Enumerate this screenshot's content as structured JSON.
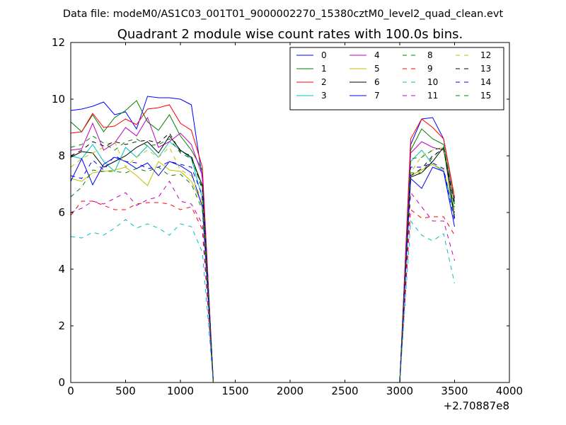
{
  "figure": {
    "suptitle": "Data file: modeM0/AS1C03_001T01_9000002270_15380cztM0_level2_quad_clean.evt"
  },
  "chart_data": {
    "type": "line",
    "title": "Quadrant 2 module wise count rates with 100.0s bins.",
    "xlabel": "",
    "ylabel": "",
    "x_offset_label": "+2.70887e8",
    "xlim": [
      0,
      4000
    ],
    "ylim": [
      0,
      12
    ],
    "xticks": [
      0,
      500,
      1000,
      1500,
      2000,
      2500,
      3000,
      3500,
      4000
    ],
    "yticks": [
      0,
      2,
      4,
      6,
      8,
      10,
      12
    ],
    "grid": false,
    "legend": {
      "placement": "top-right",
      "columns": 4
    },
    "x": [
      0,
      100,
      200,
      300,
      400,
      500,
      600,
      700,
      800,
      900,
      1000,
      1100,
      1200,
      1300,
      3000,
      3100,
      3200,
      3300,
      3400,
      3500
    ],
    "series": [
      {
        "name": "0",
        "color": "#0000ff",
        "dash": "solid",
        "values": [
          9.6,
          9.65,
          9.75,
          9.9,
          9.45,
          9.55,
          8.95,
          10.1,
          10.05,
          10.05,
          10.0,
          9.8,
          7.2,
          0,
          0,
          8.4,
          9.3,
          9.35,
          8.6,
          6.5
        ]
      },
      {
        "name": "1",
        "color": "#008000",
        "dash": "solid",
        "values": [
          9.2,
          8.85,
          9.45,
          8.85,
          9.35,
          9.6,
          9.95,
          9.2,
          8.9,
          9.45,
          8.7,
          8.2,
          7.5,
          0,
          0,
          8.2,
          8.95,
          8.6,
          8.4,
          6.3
        ]
      },
      {
        "name": "2",
        "color": "#ff0000",
        "dash": "solid",
        "values": [
          8.8,
          8.85,
          9.5,
          9.0,
          9.05,
          9.3,
          9.1,
          9.65,
          9.7,
          9.8,
          9.15,
          8.9,
          7.6,
          0,
          0,
          8.6,
          9.3,
          9.0,
          8.6,
          6.55
        ]
      },
      {
        "name": "3",
        "color": "#00bfbf",
        "dash": "solid",
        "values": [
          8.0,
          7.9,
          8.4,
          7.8,
          7.45,
          8.3,
          7.95,
          8.35,
          7.95,
          8.5,
          8.2,
          7.9,
          6.5,
          0,
          0,
          7.8,
          8.2,
          7.7,
          7.45,
          5.9
        ]
      },
      {
        "name": "4",
        "color": "#bf00bf",
        "dash": "solid",
        "values": [
          8.2,
          8.25,
          9.15,
          8.2,
          8.45,
          9.0,
          8.7,
          9.35,
          8.3,
          8.5,
          8.8,
          8.4,
          7.3,
          0,
          0,
          8.1,
          8.5,
          8.3,
          8.2,
          6.4
        ]
      },
      {
        "name": "5",
        "color": "#bfbf00",
        "dash": "solid",
        "values": [
          7.2,
          7.1,
          7.4,
          7.45,
          7.5,
          7.6,
          7.3,
          6.95,
          7.8,
          7.5,
          7.45,
          7.1,
          6.3,
          0,
          0,
          7.3,
          7.5,
          7.7,
          7.5,
          6.1
        ]
      },
      {
        "name": "6",
        "color": "#000000",
        "dash": "solid",
        "values": [
          7.95,
          8.15,
          8.1,
          7.6,
          7.8,
          8.0,
          8.3,
          8.5,
          8.1,
          8.7,
          8.2,
          7.95,
          6.95,
          0,
          0,
          7.25,
          7.4,
          7.8,
          8.3,
          5.8
        ]
      },
      {
        "name": "7",
        "color": "#0000ff",
        "dash": "solid",
        "values": [
          7.1,
          7.9,
          6.98,
          7.7,
          7.95,
          7.8,
          7.55,
          7.75,
          7.3,
          7.8,
          7.65,
          7.4,
          6.2,
          0,
          0,
          7.2,
          6.85,
          7.6,
          7.45,
          5.5
        ]
      },
      {
        "name": "8",
        "color": "#008000",
        "dash": "dashed",
        "values": [
          6.55,
          6.9,
          7.5,
          7.45,
          7.45,
          7.4,
          7.55,
          7.45,
          7.6,
          7.3,
          7.35,
          7.0,
          6.1,
          0,
          0,
          7.4,
          7.4,
          7.95,
          8.3,
          6.0
        ]
      },
      {
        "name": "9",
        "color": "#ff0000",
        "dash": "dashed",
        "values": [
          5.9,
          6.4,
          6.4,
          6.25,
          6.1,
          6.1,
          6.3,
          6.35,
          6.35,
          6.3,
          6.1,
          6.2,
          5.4,
          0,
          0,
          6.1,
          5.8,
          5.85,
          5.85,
          5.2
        ]
      },
      {
        "name": "10",
        "color": "#00bfbf",
        "dash": "dashed",
        "values": [
          5.15,
          5.1,
          5.3,
          5.2,
          5.45,
          5.75,
          5.45,
          5.6,
          5.45,
          5.2,
          5.6,
          5.5,
          4.6,
          0,
          0,
          5.7,
          5.2,
          5.0,
          5.25,
          3.5
        ]
      },
      {
        "name": "11",
        "color": "#bf00bf",
        "dash": "dashed",
        "values": [
          6.0,
          6.15,
          6.4,
          6.3,
          6.5,
          6.7,
          6.25,
          6.45,
          6.55,
          7.1,
          6.4,
          6.3,
          5.6,
          0,
          0,
          6.7,
          6.2,
          5.7,
          5.7,
          4.3
        ]
      },
      {
        "name": "12",
        "color": "#bfbf00",
        "dash": "dashed",
        "values": [
          7.6,
          7.9,
          8.1,
          8.3,
          8.5,
          7.6,
          7.95,
          8.2,
          7.95,
          8.3,
          7.5,
          7.3,
          6.4,
          0,
          0,
          7.4,
          8.0,
          8.2,
          8.3,
          6.5
        ]
      },
      {
        "name": "13",
        "color": "#000000",
        "dash": "dashed",
        "values": [
          8.0,
          8.2,
          8.5,
          8.35,
          8.5,
          8.4,
          8.5,
          8.55,
          8.45,
          8.8,
          8.15,
          8.0,
          6.8,
          0,
          0,
          7.3,
          7.55,
          8.0,
          8.25,
          6.2
        ]
      },
      {
        "name": "14",
        "color": "#0000ff",
        "dash": "dashed",
        "values": [
          7.3,
          7.2,
          7.85,
          7.5,
          8.0,
          7.8,
          7.75,
          7.55,
          7.6,
          7.8,
          7.7,
          7.6,
          6.6,
          0,
          0,
          7.6,
          7.6,
          7.75,
          7.55,
          5.7
        ]
      },
      {
        "name": "15",
        "color": "#008000",
        "dash": "dashed",
        "values": [
          8.3,
          8.4,
          8.7,
          8.45,
          8.2,
          8.5,
          8.6,
          8.35,
          8.4,
          8.6,
          8.1,
          7.9,
          6.9,
          0,
          0,
          7.9,
          7.95,
          8.2,
          8.3,
          6.4
        ]
      }
    ]
  }
}
